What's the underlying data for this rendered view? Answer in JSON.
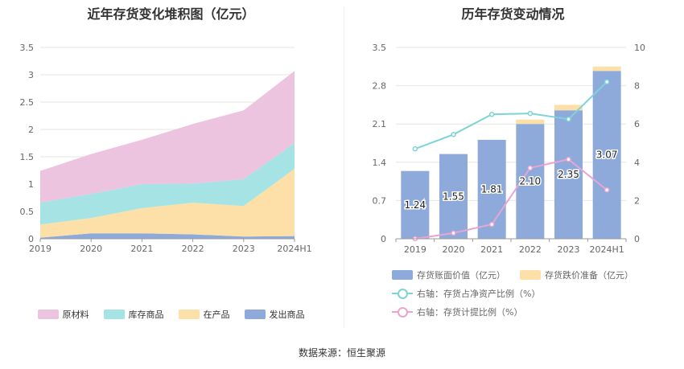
{
  "titles": {
    "left": "近年存货变化堆积图（亿元）",
    "right": "历年存货变动情况"
  },
  "source": "数据来源：恒生聚源",
  "chart_data": [
    {
      "type": "area",
      "stacked": true,
      "title": "近年存货变化堆积图（亿元）",
      "categories": [
        "2019",
        "2020",
        "2021",
        "2022",
        "2023",
        "2024H1"
      ],
      "ylim": [
        0,
        3.5
      ],
      "yticks": [
        "0",
        "0.5",
        "1",
        "1.5",
        "2",
        "2.5",
        "3",
        "3.5"
      ],
      "grid": true,
      "legend_position": "bottom",
      "series": [
        {
          "name": "发出商品",
          "color": "#8eaadb",
          "values": [
            0.02,
            0.1,
            0.1,
            0.08,
            0.04,
            0.05
          ]
        },
        {
          "name": "在产品",
          "color": "#fde0a8",
          "values": [
            0.24,
            0.28,
            0.46,
            0.58,
            0.56,
            1.23
          ]
        },
        {
          "name": "库存商品",
          "color": "#a6e3e5",
          "values": [
            0.4,
            0.44,
            0.44,
            0.35,
            0.49,
            0.47
          ]
        },
        {
          "name": "原材料",
          "color": "#ecc4e0",
          "values": [
            0.58,
            0.73,
            0.81,
            1.09,
            1.26,
            1.32
          ]
        }
      ]
    },
    {
      "type": "bar",
      "title": "历年存货变动情况",
      "categories": [
        "2019",
        "2020",
        "2021",
        "2022",
        "2023",
        "2024H1"
      ],
      "ylim": [
        0,
        3.5
      ],
      "yticks": [
        "0",
        "0.7",
        "1.4",
        "2.1",
        "2.8",
        "3.5"
      ],
      "y2lim": [
        0,
        10
      ],
      "y2ticks": [
        "0",
        "2",
        "4",
        "6",
        "8",
        "10"
      ],
      "grid": true,
      "legend_position": "bottom",
      "series": [
        {
          "name": "存货账面价值（亿元）",
          "type": "bar",
          "color": "#8eaadb",
          "values": [
            1.24,
            1.55,
            1.81,
            2.1,
            2.35,
            3.07
          ],
          "labels": [
            "1.24",
            "1.55",
            "1.81",
            "2.10",
            "2.35",
            "3.07"
          ]
        },
        {
          "name": "存货跌价准备（亿元）",
          "type": "bar-stack",
          "color": "#fde0a8",
          "values": [
            0,
            0,
            0,
            0.08,
            0.1,
            0.08
          ]
        },
        {
          "name": "右轴：存货占净资产比例（%）",
          "type": "line",
          "axis": "right",
          "color": "#7ed3d6",
          "values": [
            4.7,
            5.45,
            6.5,
            6.55,
            6.25,
            8.2
          ]
        },
        {
          "name": "右轴：存货计提比例（%）",
          "type": "line",
          "axis": "right",
          "color": "#e8a5d3",
          "values": [
            0.0,
            0.3,
            0.75,
            3.7,
            4.15,
            2.55
          ]
        }
      ]
    }
  ]
}
